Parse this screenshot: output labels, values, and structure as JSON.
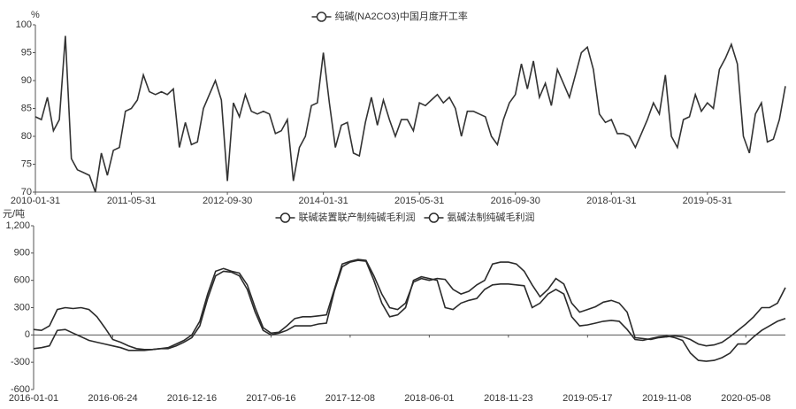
{
  "chart_data": [
    {
      "type": "line",
      "y_unit": "%",
      "categories": [
        "2010-01-31",
        null,
        null,
        null,
        null,
        null,
        null,
        null,
        null,
        null,
        null,
        null,
        null,
        null,
        null,
        null,
        "2011-05-31",
        null,
        null,
        null,
        null,
        null,
        null,
        null,
        null,
        null,
        null,
        null,
        null,
        null,
        null,
        null,
        "2012-09-30",
        null,
        null,
        null,
        null,
        null,
        null,
        null,
        null,
        null,
        null,
        null,
        null,
        null,
        null,
        null,
        "2014-01-31",
        null,
        null,
        null,
        null,
        null,
        null,
        null,
        null,
        null,
        null,
        null,
        null,
        null,
        null,
        null,
        "2015-05-31",
        null,
        null,
        null,
        null,
        null,
        null,
        null,
        null,
        null,
        null,
        null,
        null,
        null,
        null,
        null,
        "2016-09-30",
        null,
        null,
        null,
        null,
        null,
        null,
        null,
        null,
        null,
        null,
        null,
        null,
        null,
        null,
        null,
        "2018-01-31",
        null,
        null,
        null,
        null,
        null,
        null,
        null,
        null,
        null,
        null,
        null,
        null,
        null,
        null,
        null,
        "2019-05-31",
        null,
        null,
        null,
        null,
        null,
        null,
        null,
        null,
        null,
        null,
        null,
        null,
        null
      ],
      "series": [
        {
          "name": "纯碱(NA2CO3)中国月度开工率",
          "color": "#333333",
          "values": [
            83.5,
            83,
            87,
            81,
            83,
            98,
            76,
            74,
            73.5,
            73,
            70,
            77,
            73,
            77.5,
            78,
            84.5,
            85,
            86.5,
            91,
            88,
            87.5,
            88,
            87.5,
            88.5,
            78,
            82.5,
            78.5,
            79,
            85,
            87.5,
            90,
            86.5,
            72,
            86,
            83.5,
            87.5,
            84.5,
            84,
            84.5,
            84,
            80.5,
            81,
            83,
            72,
            78,
            80,
            85.5,
            86,
            95,
            86,
            78,
            82,
            82.5,
            77,
            76.5,
            82.5,
            87,
            82,
            86.5,
            83,
            80,
            83,
            83,
            81,
            86,
            85.5,
            86.5,
            87.5,
            86,
            87,
            85,
            80,
            84.5,
            84.5,
            84,
            83.5,
            80,
            78.5,
            83,
            86,
            87.5,
            93,
            88.5,
            93.5,
            87,
            89.5,
            85.5,
            92,
            89.5,
            87,
            91,
            95,
            96,
            92,
            84,
            82.5,
            83,
            80.5,
            80.5,
            80,
            78,
            80.5,
            83,
            86,
            84,
            91,
            80,
            78,
            83,
            83.5,
            87.5,
            84.5,
            86,
            85,
            92,
            94,
            96.5,
            93,
            80,
            77,
            84,
            86,
            79,
            79.5,
            83,
            89
          ]
        }
      ],
      "ylim": [
        70,
        100
      ],
      "yticks": [
        70,
        75,
        80,
        85,
        90,
        95,
        100
      ]
    },
    {
      "type": "line",
      "y_unit": "元/吨",
      "categories": [
        "2016-01-01",
        null,
        null,
        null,
        null,
        null,
        null,
        null,
        null,
        null,
        "2016-06-24",
        null,
        null,
        null,
        null,
        null,
        null,
        null,
        null,
        null,
        "2016-12-16",
        null,
        null,
        null,
        null,
        null,
        null,
        null,
        null,
        null,
        "2017-06-16",
        null,
        null,
        null,
        null,
        null,
        null,
        null,
        null,
        null,
        "2017-12-08",
        null,
        null,
        null,
        null,
        null,
        null,
        null,
        null,
        null,
        "2018-06-01",
        null,
        null,
        null,
        null,
        null,
        null,
        null,
        null,
        null,
        "2018-11-23",
        null,
        null,
        null,
        null,
        null,
        null,
        null,
        null,
        null,
        "2019-05-17",
        null,
        null,
        null,
        null,
        null,
        null,
        null,
        null,
        null,
        "2019-11-08",
        null,
        null,
        null,
        null,
        null,
        null,
        null,
        null,
        null,
        "2020-05-08",
        null,
        null,
        null,
        null,
        null
      ],
      "series": [
        {
          "name": "联碱装置联产制纯碱毛利润",
          "color": "#2b2b2b",
          "values": [
            60,
            50,
            100,
            280,
            300,
            290,
            300,
            280,
            200,
            80,
            -50,
            -80,
            -120,
            -150,
            -160,
            -160,
            -150,
            -140,
            -100,
            -60,
            0,
            150,
            450,
            700,
            730,
            700,
            680,
            550,
            300,
            80,
            20,
            30,
            100,
            180,
            200,
            200,
            210,
            220,
            500,
            780,
            810,
            830,
            820,
            650,
            450,
            300,
            280,
            350,
            580,
            620,
            600,
            620,
            610,
            500,
            450,
            480,
            550,
            600,
            780,
            800,
            800,
            780,
            700,
            550,
            420,
            500,
            620,
            560,
            350,
            250,
            280,
            310,
            360,
            380,
            350,
            250,
            -30,
            -40,
            -50,
            -30,
            -20,
            -10,
            -20,
            -50,
            -100,
            -120,
            -110,
            -80,
            -20,
            50,
            120,
            200,
            300,
            300,
            350,
            520
          ]
        },
        {
          "name": "氨碱法制纯碱毛利润",
          "color": "#2b2b2b",
          "values": [
            -150,
            -140,
            -120,
            50,
            60,
            20,
            -20,
            -60,
            -80,
            -100,
            -120,
            -140,
            -170,
            -170,
            -170,
            -160,
            -150,
            -150,
            -120,
            -80,
            -30,
            100,
            400,
            650,
            700,
            690,
            650,
            500,
            250,
            50,
            0,
            20,
            50,
            100,
            100,
            100,
            120,
            130,
            480,
            750,
            800,
            820,
            810,
            600,
            350,
            200,
            220,
            300,
            600,
            640,
            620,
            600,
            300,
            280,
            350,
            380,
            400,
            500,
            550,
            560,
            560,
            550,
            540,
            300,
            350,
            450,
            500,
            450,
            200,
            100,
            110,
            130,
            150,
            160,
            150,
            60,
            -50,
            -60,
            -40,
            -20,
            -10,
            -30,
            -60,
            -200,
            -280,
            -290,
            -280,
            -250,
            -200,
            -100,
            -100,
            -20,
            50,
            100,
            150,
            180
          ]
        }
      ],
      "ylim": [
        -600,
        1200
      ],
      "yticks": [
        -600,
        -300,
        0,
        300,
        600,
        900,
        {
          "value": 1200,
          "label": "1,200"
        }
      ]
    }
  ]
}
